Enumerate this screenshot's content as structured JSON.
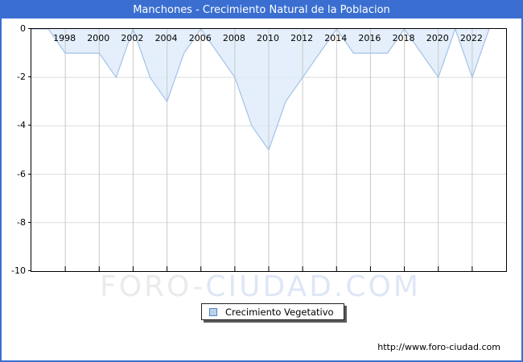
{
  "header": {
    "title": "Manchones - Crecimiento Natural de la Poblacion"
  },
  "chart_data": {
    "type": "area",
    "title": "Manchones - Crecimiento Natural de la Poblacion",
    "series_name": "Crecimiento Vegetativo",
    "x": [
      1996,
      1997,
      1998,
      1999,
      2000,
      2001,
      2002,
      2003,
      2004,
      2005,
      2006,
      2007,
      2008,
      2009,
      2010,
      2011,
      2012,
      2013,
      2014,
      2015,
      2016,
      2017,
      2018,
      2019,
      2020,
      2021,
      2022,
      2023
    ],
    "values": [
      0,
      0,
      -1,
      -1,
      -1,
      -2,
      0,
      -2,
      -3,
      -1,
      0,
      -1,
      -2,
      -4,
      -5,
      -3,
      -2,
      -1,
      0,
      -1,
      -1,
      -1,
      0,
      -1,
      -2,
      0,
      -2,
      0
    ],
    "xlim": [
      1996,
      2024
    ],
    "ylim": [
      -10,
      0
    ],
    "y_ticks": [
      0,
      -2,
      -4,
      -6,
      -8,
      -10
    ],
    "x_tick_years": [
      1998,
      2000,
      2002,
      2004,
      2006,
      2008,
      2010,
      2012,
      2014,
      2016,
      2018,
      2020,
      2022
    ],
    "grid": true,
    "legend_position": "bottom-center"
  },
  "legend": {
    "label": "Crecimiento Vegetativo"
  },
  "watermark": {
    "part1": "FORO-",
    "part2": "CIUDAD.COM"
  },
  "footer": {
    "url": "http://www.foro-ciudad.com"
  },
  "colors": {
    "accent_blue": "#3a6fd1",
    "area_fill": "#dcebfa",
    "area_line": "#a3c2e8",
    "vgrid": "#c9c9c9",
    "hgrid": "#dedede",
    "swatch_fill": "#b9d3ee"
  }
}
